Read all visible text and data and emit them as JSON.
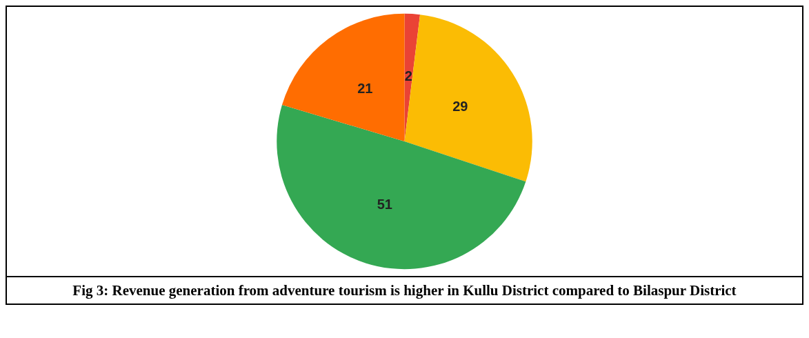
{
  "chart_data": {
    "type": "pie",
    "categories": [
      null,
      null,
      null,
      null
    ],
    "values": [
      2,
      29,
      51,
      21
    ],
    "colors": [
      "#ea4335",
      "#fbbc04",
      "#34a853",
      "#ff6d01"
    ],
    "data_labels": true,
    "annotations": [
      "Fig 3: Revenue generation from adventure tourism is higher in Kullu District compared to Bilaspur District"
    ]
  }
}
